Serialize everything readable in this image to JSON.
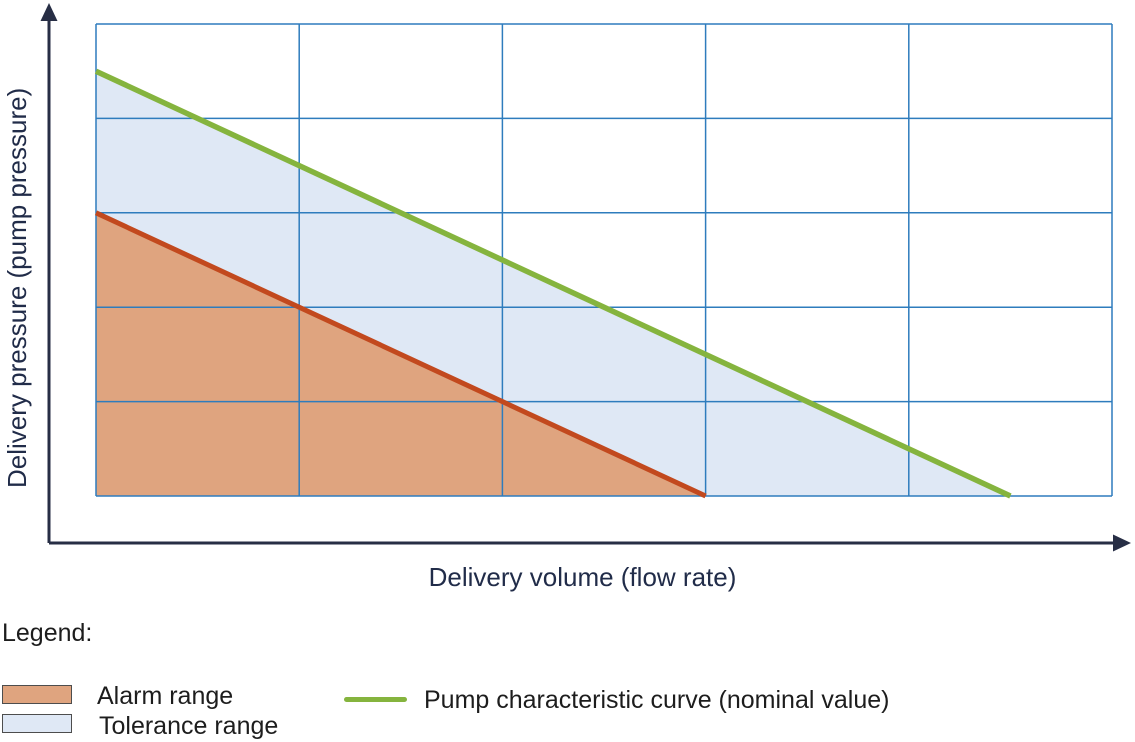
{
  "colors": {
    "grid_line": "#2e7cbd",
    "axis": "#272e45",
    "axis_label_text": "#212c49",
    "legend_text": "#1d1d1d",
    "swatch_border": "#4d4d4d"
  },
  "chart_data": {
    "type": "area",
    "title": "",
    "xlabel": "Delivery volume (flow rate)",
    "ylabel": "Delivery pressure (pump pressure)",
    "x_range": [
      0,
      5
    ],
    "y_range": [
      0,
      5
    ],
    "axis_tick_labels": "none",
    "grid": {
      "visible": true,
      "cols": 5,
      "rows": 5
    },
    "legend_position": "below-chart",
    "regions": [
      {
        "name": "Alarm range",
        "fill": "#dfa47f",
        "polygon": [
          [
            0,
            3
          ],
          [
            3,
            0
          ],
          [
            0,
            0
          ]
        ],
        "edge": [
          [
            0,
            3
          ],
          [
            3,
            0
          ]
        ],
        "edge_color": "#c2491e"
      },
      {
        "name": "Tolerance range",
        "fill": "#dfe8f5",
        "polygon": [
          [
            0,
            4.5
          ],
          [
            4.5,
            0
          ],
          [
            3,
            0
          ],
          [
            0,
            3
          ]
        ]
      }
    ],
    "lines": [
      {
        "name": "Pump characteristic curve (nominal value)",
        "color": "#85b43e",
        "points": [
          [
            0,
            4.5
          ],
          [
            4.5,
            0
          ]
        ]
      }
    ]
  },
  "legend": {
    "title": "Legend:",
    "items": [
      {
        "label": "Alarm range"
      },
      {
        "label": "Tolerance range"
      },
      {
        "label": "Pump characteristic curve (nominal value)"
      }
    ]
  }
}
